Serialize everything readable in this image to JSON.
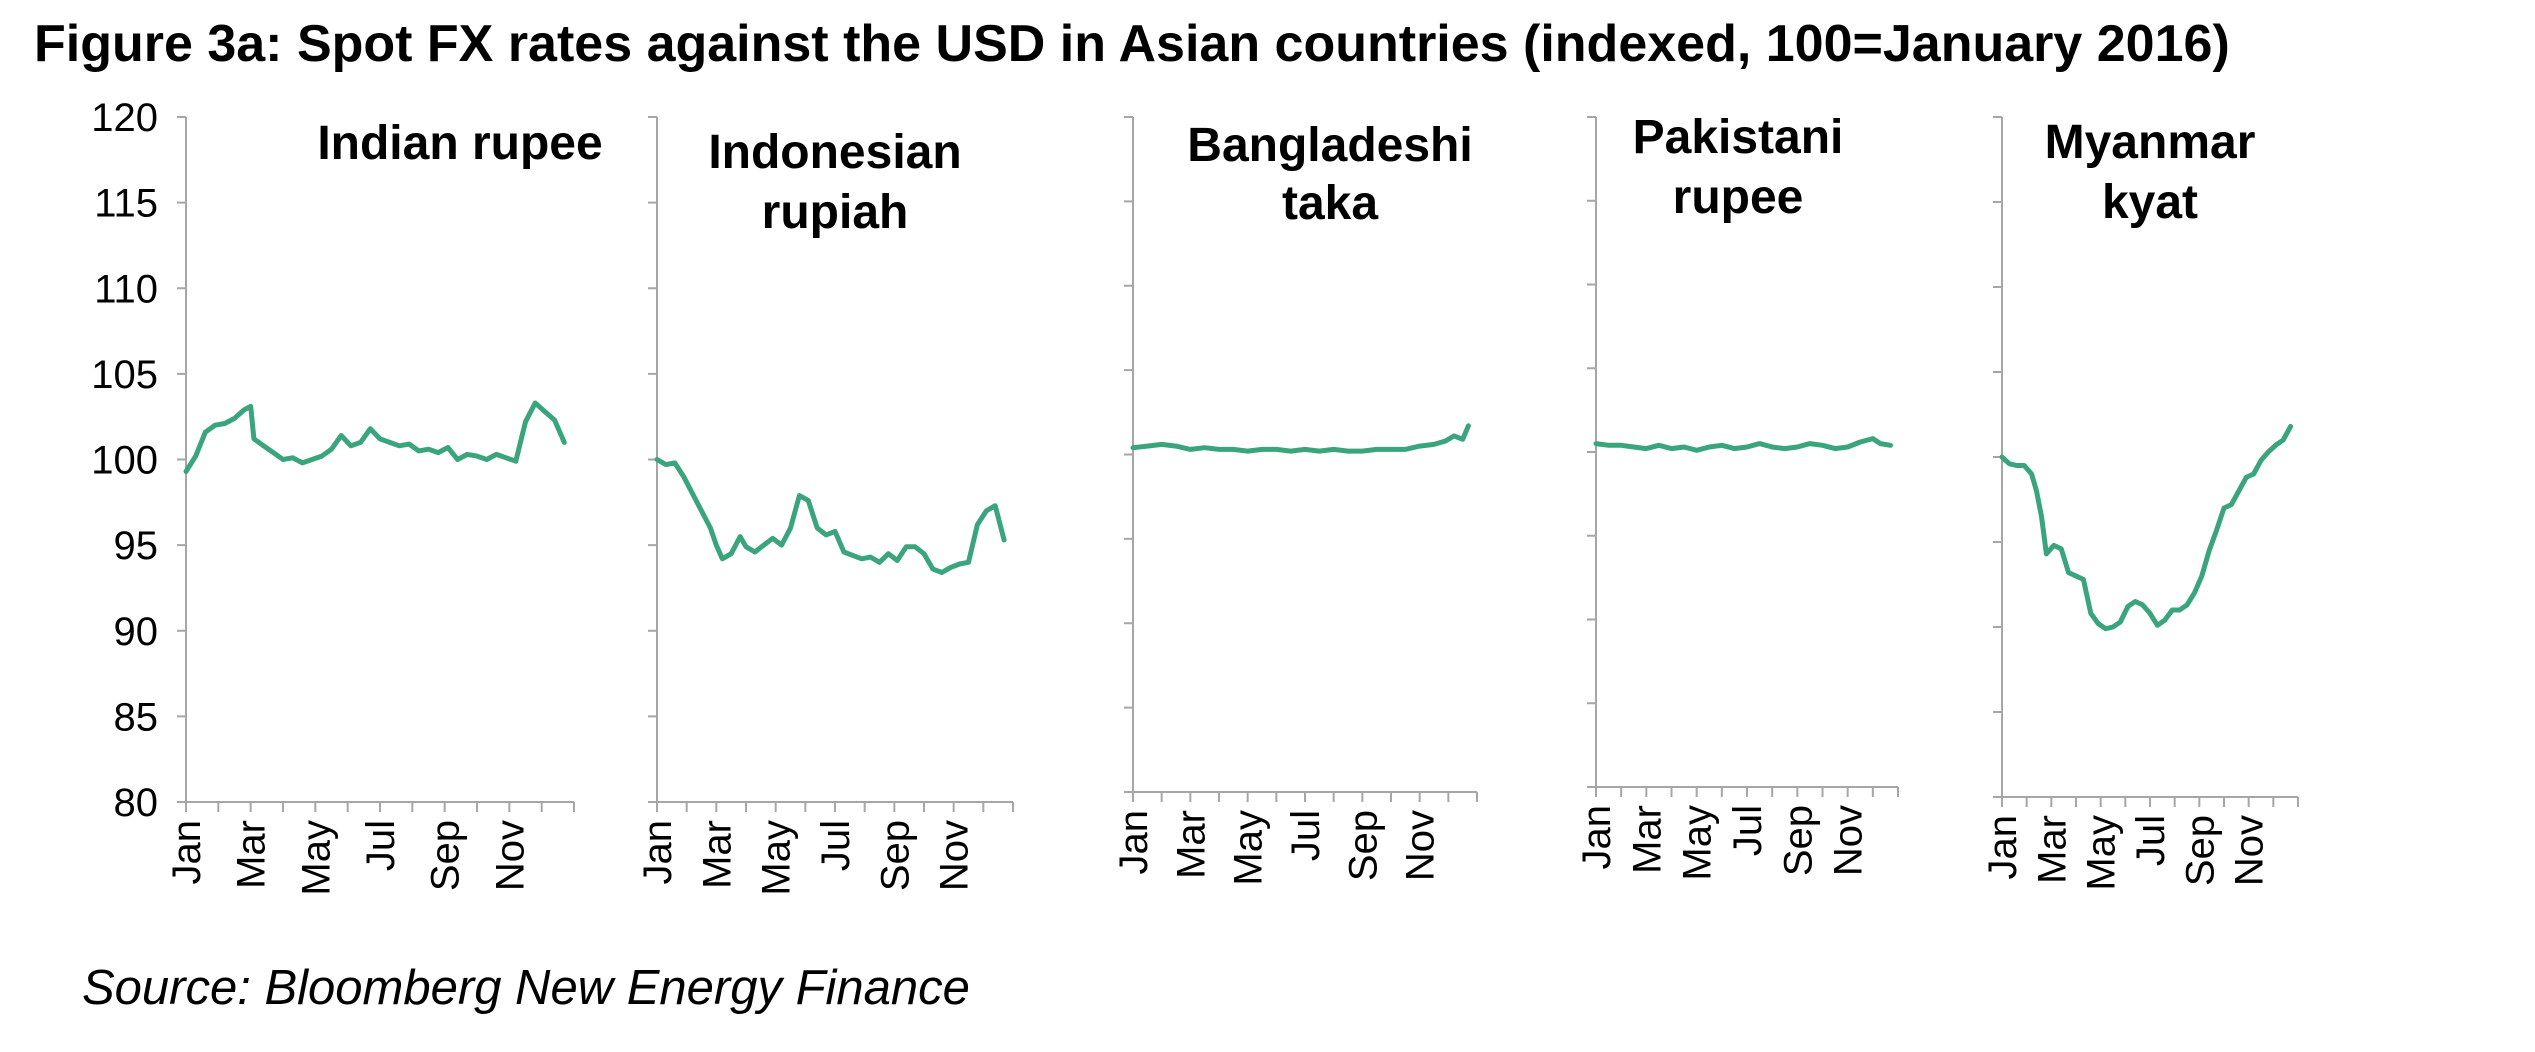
{
  "figure": {
    "title": "Figure 3a: Spot FX rates against the USD in Asian countries (indexed, 100=January 2016)",
    "source": "Source: Bloomberg New Energy Finance"
  },
  "colors": {
    "line": "#3aa57c",
    "axis": "#a6a6a6",
    "text": "#000000"
  },
  "chart_data": [
    {
      "type": "line",
      "title": [
        "Indian rupee"
      ],
      "categories": [
        "Jan",
        "Mar",
        "May",
        "Jul",
        "Sep",
        "Nov"
      ],
      "ylim": [
        80,
        120
      ],
      "yticks": [
        "120",
        "115",
        "110",
        "105",
        "100",
        "95",
        "90",
        "85",
        "80"
      ],
      "x": [
        0.0,
        0.3,
        0.6,
        0.9,
        1.2,
        1.5,
        1.8,
        2.0,
        2.1,
        2.4,
        2.7,
        3.0,
        3.3,
        3.6,
        3.9,
        4.2,
        4.5,
        4.8,
        5.1,
        5.4,
        5.7,
        6.0,
        6.3,
        6.6,
        6.9,
        7.2,
        7.5,
        7.8,
        8.1,
        8.4,
        8.7,
        9.0,
        9.3,
        9.6,
        9.9,
        10.2,
        10.5,
        10.8,
        11.1,
        11.4,
        11.7
      ],
      "y": [
        99.3,
        100.2,
        101.6,
        102.0,
        102.1,
        102.4,
        102.9,
        103.1,
        101.2,
        100.8,
        100.4,
        100.0,
        100.1,
        99.8,
        100.0,
        100.2,
        100.6,
        101.4,
        100.8,
        101.0,
        101.8,
        101.2,
        101.0,
        100.8,
        100.9,
        100.5,
        100.6,
        100.4,
        100.7,
        100.0,
        100.3,
        100.2,
        100.0,
        100.3,
        100.1,
        99.9,
        102.2,
        103.3,
        102.8,
        102.3,
        101.0
      ]
    },
    {
      "type": "line",
      "title": [
        "Indonesian",
        "rupiah"
      ],
      "categories": [
        "Jan",
        "Mar",
        "May",
        "Jul",
        "Sep",
        "Nov"
      ],
      "ylim": [
        80,
        120
      ],
      "x": [
        0.0,
        0.3,
        0.6,
        0.9,
        1.2,
        1.5,
        1.8,
        2.0,
        2.2,
        2.5,
        2.8,
        3.0,
        3.3,
        3.6,
        3.9,
        4.2,
        4.5,
        4.8,
        5.1,
        5.4,
        5.7,
        6.0,
        6.3,
        6.6,
        6.9,
        7.2,
        7.5,
        7.8,
        8.1,
        8.4,
        8.7,
        9.0,
        9.3,
        9.6,
        9.9,
        10.2,
        10.5,
        10.8,
        11.1,
        11.4,
        11.7
      ],
      "y": [
        100.0,
        99.7,
        99.8,
        99.0,
        98.0,
        97.0,
        96.0,
        95.0,
        94.2,
        94.5,
        95.5,
        94.9,
        94.6,
        95.0,
        95.4,
        95.0,
        96.0,
        97.9,
        97.6,
        96.0,
        95.6,
        95.8,
        94.6,
        94.4,
        94.2,
        94.3,
        94.0,
        94.5,
        94.1,
        94.9,
        94.9,
        94.5,
        93.6,
        93.4,
        93.7,
        93.9,
        94.0,
        96.2,
        97.0,
        97.3,
        95.3
      ]
    },
    {
      "type": "line",
      "title": [
        "Bangladeshi",
        "taka"
      ],
      "categories": [
        "Jan",
        "Mar",
        "May",
        "Jul",
        "Sep",
        "Nov"
      ],
      "ylim": [
        80,
        120
      ],
      "x": [
        0.0,
        0.5,
        1.0,
        1.5,
        2.0,
        2.5,
        3.0,
        3.5,
        4.0,
        4.5,
        5.0,
        5.5,
        6.0,
        6.5,
        7.0,
        7.5,
        8.0,
        8.5,
        9.0,
        9.5,
        10.0,
        10.5,
        10.9,
        11.2,
        11.5,
        11.7
      ],
      "y": [
        100.4,
        100.5,
        100.6,
        100.5,
        100.3,
        100.4,
        100.3,
        100.3,
        100.2,
        100.3,
        100.3,
        100.2,
        100.3,
        100.2,
        100.3,
        100.2,
        100.2,
        100.3,
        100.3,
        100.3,
        100.5,
        100.6,
        100.8,
        101.1,
        100.9,
        101.7
      ]
    },
    {
      "type": "line",
      "title": [
        "Pakistani",
        "rupee"
      ],
      "categories": [
        "Jan",
        "Mar",
        "May",
        "Jul",
        "Sep",
        "Nov"
      ],
      "ylim": [
        80,
        120
      ],
      "x": [
        0.0,
        0.5,
        1.0,
        1.5,
        2.0,
        2.5,
        3.0,
        3.5,
        4.0,
        4.5,
        5.0,
        5.5,
        6.0,
        6.5,
        7.0,
        7.5,
        8.0,
        8.5,
        9.0,
        9.5,
        10.0,
        10.5,
        11.0,
        11.3,
        11.7
      ],
      "y": [
        100.5,
        100.4,
        100.4,
        100.3,
        100.2,
        100.4,
        100.2,
        100.3,
        100.1,
        100.3,
        100.4,
        100.2,
        100.3,
        100.5,
        100.3,
        100.2,
        100.3,
        100.5,
        100.4,
        100.2,
        100.3,
        100.6,
        100.8,
        100.5,
        100.4
      ]
    },
    {
      "type": "line",
      "title": [
        "Myanmar",
        "kyat"
      ],
      "categories": [
        "Jan",
        "Mar",
        "May",
        "Jul",
        "Sep",
        "Nov"
      ],
      "ylim": [
        80,
        120
      ],
      "x": [
        0.0,
        0.3,
        0.6,
        0.9,
        1.2,
        1.4,
        1.6,
        1.8,
        2.1,
        2.4,
        2.7,
        3.0,
        3.3,
        3.6,
        3.9,
        4.2,
        4.5,
        4.8,
        5.1,
        5.4,
        5.7,
        6.0,
        6.3,
        6.6,
        6.9,
        7.2,
        7.5,
        7.8,
        8.1,
        8.4,
        8.7,
        9.0,
        9.3,
        9.6,
        9.9,
        10.2,
        10.5,
        10.8,
        11.1,
        11.4,
        11.7
      ],
      "y": [
        100.0,
        99.6,
        99.5,
        99.5,
        99.0,
        98.0,
        96.5,
        94.3,
        94.8,
        94.6,
        93.2,
        93.0,
        92.8,
        90.8,
        90.2,
        89.9,
        90.0,
        90.3,
        91.2,
        91.5,
        91.3,
        90.8,
        90.1,
        90.4,
        91.0,
        91.0,
        91.3,
        92.0,
        93.0,
        94.5,
        95.7,
        97.0,
        97.2,
        98.0,
        98.8,
        99.0,
        99.8,
        100.3,
        100.7,
        101.0,
        101.8
      ]
    }
  ]
}
